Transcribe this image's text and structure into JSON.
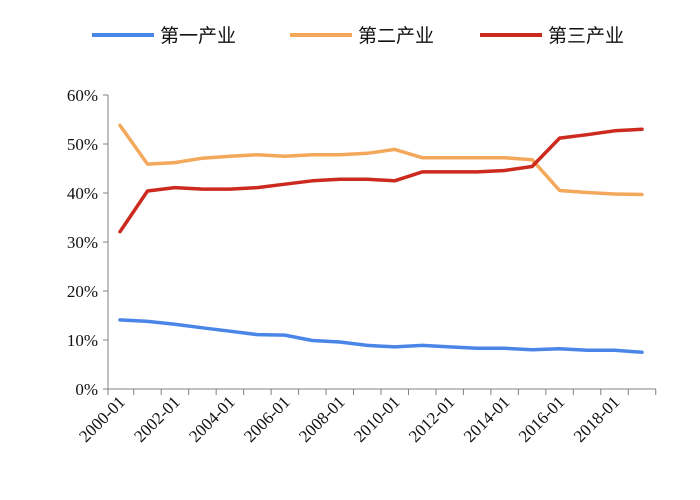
{
  "chart_data": {
    "type": "line",
    "x": [
      "2000-01",
      "2001-01",
      "2002-01",
      "2003-01",
      "2004-01",
      "2005-01",
      "2006-01",
      "2007-01",
      "2008-01",
      "2009-01",
      "2010-01",
      "2011-01",
      "2012-01",
      "2013-01",
      "2014-01",
      "2015-01",
      "2016-01",
      "2017-01",
      "2018-01",
      "2019-01"
    ],
    "xticks": [
      "2000-01",
      "2002-01",
      "2004-01",
      "2006-01",
      "2008-01",
      "2010-01",
      "2012-01",
      "2014-01",
      "2016-01",
      "2018-01"
    ],
    "yticks": [
      "0%",
      "10%",
      "20%",
      "30%",
      "40%",
      "50%",
      "60%"
    ],
    "ylim": [
      0,
      60
    ],
    "grid": false,
    "legend": "top",
    "series": [
      {
        "name": "第一产业",
        "color": "#4a86e8",
        "values": [
          14.1,
          13.8,
          13.2,
          12.5,
          11.8,
          11.1,
          11.0,
          9.9,
          9.6,
          8.9,
          8.6,
          8.9,
          8.6,
          8.3,
          8.3,
          8.0,
          8.2,
          7.9,
          7.9,
          7.5
        ]
      },
      {
        "name": "第二产业",
        "color": "#f4a85c",
        "values": [
          53.8,
          45.9,
          46.2,
          47.1,
          47.5,
          47.8,
          47.5,
          47.8,
          47.8,
          48.1,
          48.9,
          47.2,
          47.2,
          47.2,
          47.2,
          46.8,
          40.5,
          40.1,
          39.8,
          39.7
        ]
      },
      {
        "name": "第三产业",
        "color": "#cc2a1e",
        "values": [
          32.1,
          40.4,
          41.1,
          40.8,
          40.8,
          41.1,
          41.8,
          42.5,
          42.8,
          42.8,
          42.5,
          44.3,
          44.3,
          44.3,
          44.6,
          45.4,
          51.2,
          51.9,
          52.7,
          53.0
        ]
      }
    ]
  }
}
